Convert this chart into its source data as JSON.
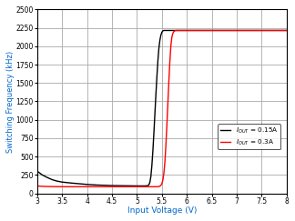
{
  "xlabel": "Input Voltage (V)",
  "ylabel_text": "Switching Frequency (kHz)",
  "xlim": [
    3.0,
    8.0
  ],
  "ylim": [
    0,
    2500
  ],
  "xticks": [
    3,
    3.5,
    4,
    4.5,
    5,
    5.5,
    6,
    6.5,
    7,
    7.5,
    8
  ],
  "yticks": [
    0,
    250,
    500,
    750,
    1000,
    1250,
    1500,
    1750,
    2000,
    2250,
    2500
  ],
  "grid_color": "#aaaaaa",
  "background_color": "#ffffff",
  "line_colors": [
    "#000000",
    "#ff0000"
  ],
  "curve1_x": [
    3.0,
    3.05,
    3.1,
    3.2,
    3.3,
    3.4,
    3.5,
    3.6,
    3.7,
    3.8,
    3.9,
    4.0,
    4.2,
    4.5,
    4.8,
    5.0,
    5.1,
    5.15,
    5.2,
    5.22,
    5.24,
    5.26,
    5.28,
    5.3,
    5.32,
    5.34,
    5.36,
    5.38,
    5.4,
    5.42,
    5.44,
    5.46,
    5.48,
    5.5,
    5.52,
    5.54,
    5.56,
    5.58,
    5.6,
    5.65,
    5.7,
    5.75,
    5.8,
    5.9,
    6.0,
    6.1,
    6.2,
    6.3,
    6.5,
    7.0,
    8.0
  ],
  "curve1_y": [
    300,
    275,
    250,
    215,
    185,
    165,
    152,
    145,
    138,
    132,
    126,
    120,
    112,
    105,
    102,
    100,
    100,
    100,
    102,
    105,
    115,
    150,
    230,
    380,
    580,
    820,
    1080,
    1340,
    1580,
    1800,
    1970,
    2080,
    2150,
    2190,
    2210,
    2215,
    2215,
    2215,
    2215,
    2215,
    2215,
    2215,
    2215,
    2215,
    2215,
    2215,
    2215,
    2215,
    2215,
    2215,
    2215
  ],
  "curve2_x": [
    3.0,
    3.1,
    3.2,
    3.4,
    3.6,
    3.8,
    4.0,
    4.5,
    5.0,
    5.1,
    5.2,
    5.3,
    5.35,
    5.38,
    5.4,
    5.42,
    5.44,
    5.46,
    5.48,
    5.5,
    5.52,
    5.54,
    5.56,
    5.58,
    5.6,
    5.62,
    5.64,
    5.66,
    5.68,
    5.7,
    5.72,
    5.74,
    5.76,
    5.78,
    5.8,
    5.82,
    5.84,
    5.86,
    5.88,
    5.9,
    5.95,
    6.0,
    6.1,
    6.2,
    6.3,
    6.4,
    6.5,
    7.0,
    8.0
  ],
  "curve2_y": [
    100,
    94,
    92,
    90,
    89,
    89,
    89,
    89,
    89,
    89,
    89,
    89,
    89,
    89,
    89,
    90,
    92,
    97,
    108,
    130,
    180,
    270,
    420,
    640,
    920,
    1220,
    1520,
    1790,
    2000,
    2120,
    2175,
    2200,
    2210,
    2215,
    2215,
    2215,
    2215,
    2215,
    2215,
    2215,
    2215,
    2215,
    2215,
    2215,
    2215,
    2215,
    2215,
    2215,
    2215
  ]
}
